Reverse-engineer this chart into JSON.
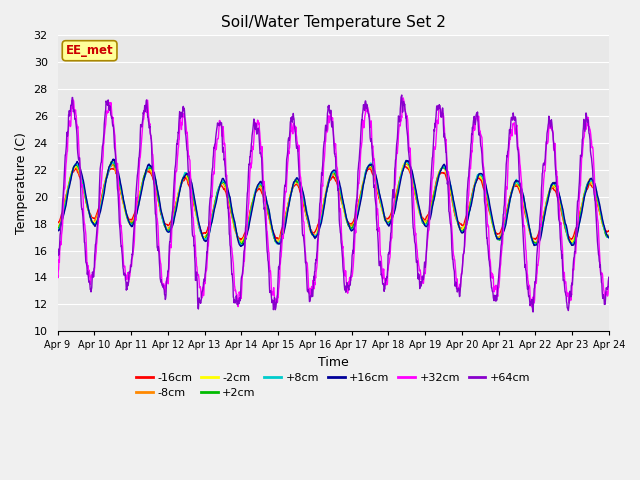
{
  "title": "Soil/Water Temperature Set 2",
  "xlabel": "Time",
  "ylabel": "Temperature (C)",
  "ylim": [
    10,
    32
  ],
  "yticks": [
    10,
    12,
    14,
    16,
    18,
    20,
    22,
    24,
    26,
    28,
    30,
    32
  ],
  "xtick_labels": [
    "Apr 9",
    "Apr 10",
    "Apr 11",
    "Apr 12",
    "Apr 13",
    "Apr 14",
    "Apr 15",
    "Apr 16",
    "Apr 17",
    "Apr 18",
    "Apr 19",
    "Apr 20",
    "Apr 21",
    "Apr 22",
    "Apr 23",
    "Apr 24"
  ],
  "annotation_text": "EE_met",
  "annotation_color": "#cc0000",
  "annotation_bg": "#ffff99",
  "series": [
    {
      "label": "-16cm",
      "color": "#ff0000"
    },
    {
      "label": "-8cm",
      "color": "#ff8800"
    },
    {
      "label": "-2cm",
      "color": "#ffff00"
    },
    {
      "label": "+2cm",
      "color": "#00bb00"
    },
    {
      "label": "+8cm",
      "color": "#00cccc"
    },
    {
      "label": "+16cm",
      "color": "#000099"
    },
    {
      "label": "+32cm",
      "color": "#ff00ff"
    },
    {
      "label": "+64cm",
      "color": "#8800cc"
    }
  ],
  "background_color": "#e8e8e8",
  "grid_color": "#ffffff",
  "fig_bg": "#f0f0f0",
  "days": 15
}
